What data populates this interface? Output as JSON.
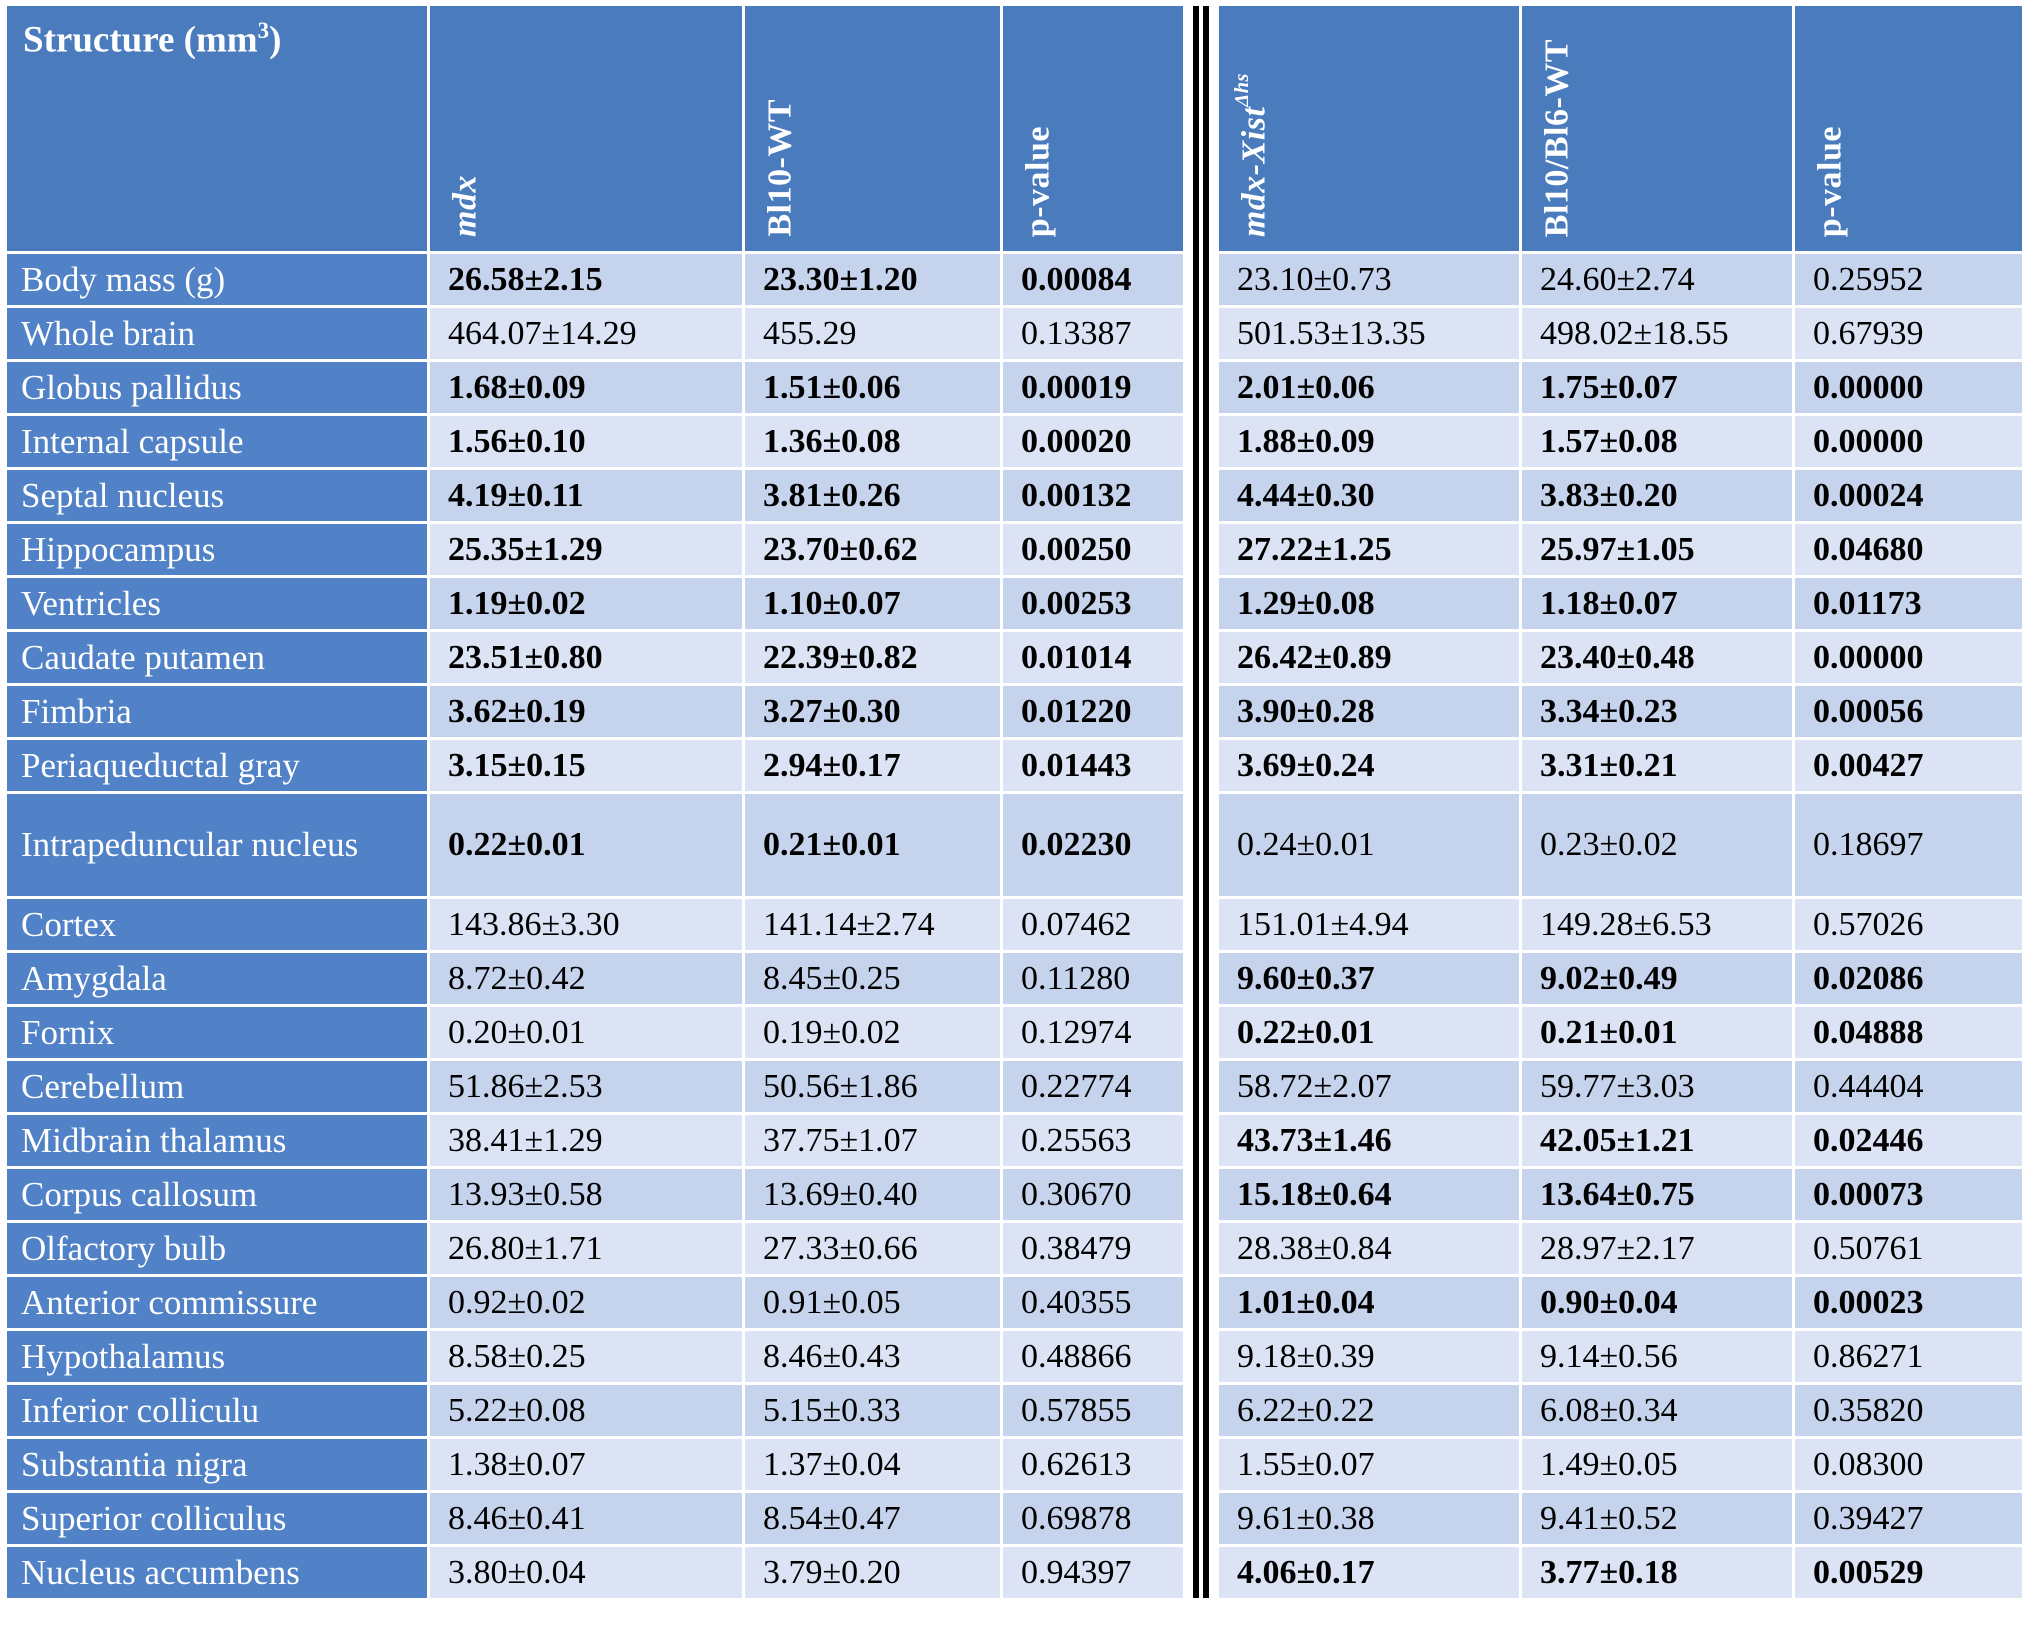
{
  "table": {
    "title": {
      "text": "Structure (mm",
      "sup": "3",
      "suffix": ")"
    },
    "columns": [
      {
        "label": "mdx",
        "italic": true
      },
      {
        "label": "Bl10-WT"
      },
      {
        "label": "p-value"
      },
      {
        "label": "mdx-Xist",
        "sup": "Δhs",
        "italic": true
      },
      {
        "label": "Bl10/Bl6-WT"
      },
      {
        "label": "p-value"
      }
    ],
    "rows": [
      {
        "structure": "Body mass (g)",
        "values": [
          "26.58±2.15",
          "23.30±1.20",
          "0.00084",
          "23.10±0.73",
          "24.60±2.74",
          "0.25952"
        ],
        "sig_left": true,
        "sig_right": false
      },
      {
        "structure": "Whole brain",
        "values": [
          "464.07±14.29",
          "455.29",
          "0.13387",
          "501.53±13.35",
          "498.02±18.55",
          "0.67939"
        ],
        "sig_left": false,
        "sig_right": false
      },
      {
        "structure": "Globus pallidus",
        "values": [
          "1.68±0.09",
          "1.51±0.06",
          "0.00019",
          "2.01±0.06",
          "1.75±0.07",
          "0.00000"
        ],
        "sig_left": true,
        "sig_right": true
      },
      {
        "structure": "Internal capsule",
        "values": [
          "1.56±0.10",
          "1.36±0.08",
          "0.00020",
          "1.88±0.09",
          "1.57±0.08",
          "0.00000"
        ],
        "sig_left": true,
        "sig_right": true
      },
      {
        "structure": "Septal nucleus",
        "values": [
          "4.19±0.11",
          "3.81±0.26",
          "0.00132",
          "4.44±0.30",
          "3.83±0.20",
          "0.00024"
        ],
        "sig_left": true,
        "sig_right": true
      },
      {
        "structure": "Hippocampus",
        "values": [
          "25.35±1.29",
          "23.70±0.62",
          "0.00250",
          "27.22±1.25",
          "25.97±1.05",
          "0.04680"
        ],
        "sig_left": true,
        "sig_right": true
      },
      {
        "structure": "Ventricles",
        "values": [
          "1.19±0.02",
          "1.10±0.07",
          "0.00253",
          "1.29±0.08",
          "1.18±0.07",
          "0.01173"
        ],
        "sig_left": true,
        "sig_right": true
      },
      {
        "structure": "Caudate putamen",
        "values": [
          "23.51±0.80",
          "22.39±0.82",
          "0.01014",
          "26.42±0.89",
          "23.40±0.48",
          "0.00000"
        ],
        "sig_left": true,
        "sig_right": true
      },
      {
        "structure": "Fimbria",
        "values": [
          "3.62±0.19",
          "3.27±0.30",
          "0.01220",
          "3.90±0.28",
          "3.34±0.23",
          "0.00056"
        ],
        "sig_left": true,
        "sig_right": true
      },
      {
        "structure": "Periaqueductal gray",
        "values": [
          "3.15±0.15",
          "2.94±0.17",
          "0.01443",
          "3.69±0.24",
          "3.31±0.21",
          "0.00427"
        ],
        "sig_left": true,
        "sig_right": true
      },
      {
        "structure": "Intrapeduncular nucleus",
        "values": [
          "0.22±0.01",
          "0.21±0.01",
          "0.02230",
          "0.24±0.01",
          "0.23±0.02",
          "0.18697"
        ],
        "sig_left": true,
        "sig_right": false
      },
      {
        "structure": "Cortex",
        "values": [
          "143.86±3.30",
          "141.14±2.74",
          "0.07462",
          "151.01±4.94",
          "149.28±6.53",
          "0.57026"
        ],
        "sig_left": false,
        "sig_right": false
      },
      {
        "structure": "Amygdala",
        "values": [
          "8.72±0.42",
          "8.45±0.25",
          "0.11280",
          "9.60±0.37",
          "9.02±0.49",
          "0.02086"
        ],
        "sig_left": false,
        "sig_right": true
      },
      {
        "structure": "Fornix",
        "values": [
          "0.20±0.01",
          "0.19±0.02",
          "0.12974",
          "0.22±0.01",
          "0.21±0.01",
          "0.04888"
        ],
        "sig_left": false,
        "sig_right": true
      },
      {
        "structure": "Cerebellum",
        "values": [
          "51.86±2.53",
          "50.56±1.86",
          "0.22774",
          "58.72±2.07",
          "59.77±3.03",
          "0.44404"
        ],
        "sig_left": false,
        "sig_right": false
      },
      {
        "structure": "Midbrain thalamus",
        "values": [
          "38.41±1.29",
          "37.75±1.07",
          "0.25563",
          "43.73±1.46",
          "42.05±1.21",
          "0.02446"
        ],
        "sig_left": false,
        "sig_right": true
      },
      {
        "structure": "Corpus callosum",
        "values": [
          "13.93±0.58",
          "13.69±0.40",
          "0.30670",
          "15.18±0.64",
          "13.64±0.75",
          "0.00073"
        ],
        "sig_left": false,
        "sig_right": true
      },
      {
        "structure": "Olfactory bulb",
        "values": [
          "26.80±1.71",
          "27.33±0.66",
          "0.38479",
          "28.38±0.84",
          "28.97±2.17",
          "0.50761"
        ],
        "sig_left": false,
        "sig_right": false
      },
      {
        "structure": "Anterior commissure",
        "values": [
          "0.92±0.02",
          "0.91±0.05",
          "0.40355",
          "1.01±0.04",
          "0.90±0.04",
          "0.00023"
        ],
        "sig_left": false,
        "sig_right": true
      },
      {
        "structure": "Hypothalamus",
        "values": [
          "8.58±0.25",
          "8.46±0.43",
          "0.48866",
          "9.18±0.39",
          "9.14±0.56",
          "0.86271"
        ],
        "sig_left": false,
        "sig_right": false
      },
      {
        "structure": "Inferior colliculu",
        "values": [
          "5.22±0.08",
          "5.15±0.33",
          "0.57855",
          "6.22±0.22",
          "6.08±0.34",
          "0.35820"
        ],
        "sig_left": false,
        "sig_right": false
      },
      {
        "structure": "Substantia nigra",
        "values": [
          "1.38±0.07",
          "1.37±0.04",
          "0.62613",
          "1.55±0.07",
          "1.49±0.05",
          "0.08300"
        ],
        "sig_left": false,
        "sig_right": false
      },
      {
        "structure": "Superior colliculus",
        "values": [
          "8.46±0.41",
          "8.54±0.47",
          "0.69878",
          "9.61±0.38",
          "9.41±0.52",
          "0.39427"
        ],
        "sig_left": false,
        "sig_right": false
      },
      {
        "structure": "Nucleus accumbens",
        "values": [
          "3.80±0.04",
          "3.79±0.20",
          "0.94397",
          "4.06±0.17",
          "3.77±0.18",
          "0.00529"
        ],
        "sig_left": false,
        "sig_right": true
      }
    ]
  }
}
